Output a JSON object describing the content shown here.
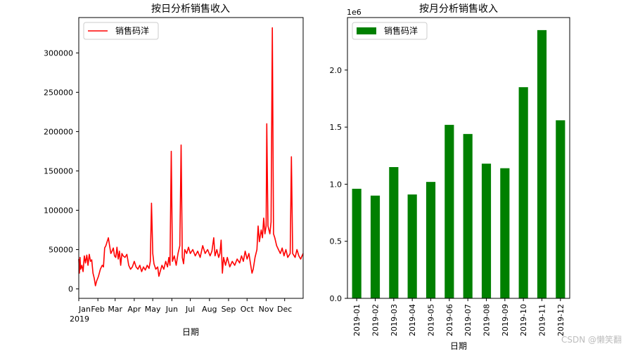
{
  "chart_data": [
    {
      "type": "line",
      "title": "按日分析销售收入",
      "xlabel": "日期",
      "ylabel": "",
      "x_tick_labels": [
        "Jan",
        "Feb",
        "Mar",
        "Apr",
        "May",
        "Jun",
        "Jul",
        "Aug",
        "Sep",
        "Oct",
        "Nov",
        "Dec"
      ],
      "x_year_label": "2019",
      "y_ticks": [
        0,
        50000,
        100000,
        150000,
        200000,
        250000,
        300000
      ],
      "y_tick_labels": [
        "0",
        "50000",
        "100000",
        "150000",
        "200000",
        "250000",
        "300000"
      ],
      "xlim": [
        "2019-01-01",
        "2019-12-31"
      ],
      "ylim": [
        -12000,
        345000
      ],
      "legend": {
        "position": "top-left",
        "entries": [
          "销售码洋"
        ]
      },
      "series": [
        {
          "name": "销售码洋",
          "color": "#ff0000",
          "points": [
            [
              "2019-01-01",
              38000
            ],
            [
              "2019-01-02",
              20000
            ],
            [
              "2019-01-03",
              40000
            ],
            [
              "2019-01-04",
              25000
            ],
            [
              "2019-01-06",
              30000
            ],
            [
              "2019-01-08",
              22000
            ],
            [
              "2019-01-10",
              42000
            ],
            [
              "2019-01-12",
              33000
            ],
            [
              "2019-01-14",
              43000
            ],
            [
              "2019-01-16",
              30000
            ],
            [
              "2019-01-18",
              44000
            ],
            [
              "2019-01-20",
              35000
            ],
            [
              "2019-01-22",
              37000
            ],
            [
              "2019-01-24",
              20000
            ],
            [
              "2019-01-26",
              14000
            ],
            [
              "2019-01-28",
              4000
            ],
            [
              "2019-01-30",
              10000
            ],
            [
              "2019-02-02",
              16000
            ],
            [
              "2019-02-05",
              25000
            ],
            [
              "2019-02-08",
              30000
            ],
            [
              "2019-02-10",
              28000
            ],
            [
              "2019-02-12",
              52000
            ],
            [
              "2019-02-14",
              55000
            ],
            [
              "2019-02-16",
              60000
            ],
            [
              "2019-02-18",
              65000
            ],
            [
              "2019-02-20",
              55000
            ],
            [
              "2019-02-22",
              45000
            ],
            [
              "2019-02-24",
              48000
            ],
            [
              "2019-02-26",
              52000
            ],
            [
              "2019-02-28",
              42000
            ],
            [
              "2019-03-02",
              40000
            ],
            [
              "2019-03-04",
              53000
            ],
            [
              "2019-03-06",
              38000
            ],
            [
              "2019-03-08",
              48000
            ],
            [
              "2019-03-10",
              30000
            ],
            [
              "2019-03-12",
              45000
            ],
            [
              "2019-03-14",
              42000
            ],
            [
              "2019-03-17",
              40000
            ],
            [
              "2019-03-20",
              44000
            ],
            [
              "2019-03-23",
              30000
            ],
            [
              "2019-03-26",
              25000
            ],
            [
              "2019-03-29",
              28000
            ],
            [
              "2019-04-01",
              35000
            ],
            [
              "2019-04-04",
              28000
            ],
            [
              "2019-04-07",
              25000
            ],
            [
              "2019-04-10",
              30000
            ],
            [
              "2019-04-13",
              22000
            ],
            [
              "2019-04-16",
              28000
            ],
            [
              "2019-04-19",
              24000
            ],
            [
              "2019-04-22",
              30000
            ],
            [
              "2019-04-25",
              26000
            ],
            [
              "2019-04-27",
              35000
            ],
            [
              "2019-04-29",
              109000
            ],
            [
              "2019-05-01",
              45000
            ],
            [
              "2019-05-03",
              32000
            ],
            [
              "2019-05-06",
              25000
            ],
            [
              "2019-05-09",
              28000
            ],
            [
              "2019-05-11",
              16000
            ],
            [
              "2019-05-13",
              22000
            ],
            [
              "2019-05-16",
              30000
            ],
            [
              "2019-05-19",
              25000
            ],
            [
              "2019-05-22",
              35000
            ],
            [
              "2019-05-25",
              28000
            ],
            [
              "2019-05-27",
              40000
            ],
            [
              "2019-05-29",
              30000
            ],
            [
              "2019-05-31",
              175000
            ],
            [
              "2019-06-02",
              35000
            ],
            [
              "2019-06-05",
              42000
            ],
            [
              "2019-06-08",
              30000
            ],
            [
              "2019-06-11",
              45000
            ],
            [
              "2019-06-14",
              55000
            ],
            [
              "2019-06-16",
              183000
            ],
            [
              "2019-06-18",
              40000
            ],
            [
              "2019-06-20",
              32000
            ],
            [
              "2019-06-22",
              50000
            ],
            [
              "2019-06-25",
              45000
            ],
            [
              "2019-06-28",
              53000
            ],
            [
              "2019-07-01",
              45000
            ],
            [
              "2019-07-05",
              50000
            ],
            [
              "2019-07-09",
              42000
            ],
            [
              "2019-07-13",
              48000
            ],
            [
              "2019-07-17",
              40000
            ],
            [
              "2019-07-21",
              55000
            ],
            [
              "2019-07-25",
              45000
            ],
            [
              "2019-07-29",
              50000
            ],
            [
              "2019-08-02",
              42000
            ],
            [
              "2019-08-05",
              48000
            ],
            [
              "2019-08-08",
              65000
            ],
            [
              "2019-08-10",
              42000
            ],
            [
              "2019-08-13",
              50000
            ],
            [
              "2019-08-16",
              40000
            ],
            [
              "2019-08-18",
              45000
            ],
            [
              "2019-08-20",
              62000
            ],
            [
              "2019-08-22",
              20000
            ],
            [
              "2019-08-24",
              40000
            ],
            [
              "2019-08-27",
              30000
            ],
            [
              "2019-08-30",
              40000
            ],
            [
              "2019-09-03",
              28000
            ],
            [
              "2019-09-07",
              35000
            ],
            [
              "2019-09-11",
              30000
            ],
            [
              "2019-09-15",
              38000
            ],
            [
              "2019-09-19",
              33000
            ],
            [
              "2019-09-22",
              42000
            ],
            [
              "2019-09-25",
              35000
            ],
            [
              "2019-09-28",
              48000
            ],
            [
              "2019-10-01",
              38000
            ],
            [
              "2019-10-04",
              45000
            ],
            [
              "2019-10-07",
              30000
            ],
            [
              "2019-10-09",
              20000
            ],
            [
              "2019-10-11",
              25000
            ],
            [
              "2019-10-14",
              40000
            ],
            [
              "2019-10-17",
              50000
            ],
            [
              "2019-10-19",
              80000
            ],
            [
              "2019-10-21",
              60000
            ],
            [
              "2019-10-24",
              75000
            ],
            [
              "2019-10-26",
              65000
            ],
            [
              "2019-10-28",
              90000
            ],
            [
              "2019-10-30",
              70000
            ],
            [
              "2019-11-01",
              80000
            ],
            [
              "2019-11-02",
              210000
            ],
            [
              "2019-11-04",
              80000
            ],
            [
              "2019-11-07",
              70000
            ],
            [
              "2019-11-09",
              85000
            ],
            [
              "2019-11-11",
              332000
            ],
            [
              "2019-11-13",
              70000
            ],
            [
              "2019-11-15",
              65000
            ],
            [
              "2019-11-18",
              55000
            ],
            [
              "2019-11-21",
              50000
            ],
            [
              "2019-11-24",
              45000
            ],
            [
              "2019-11-27",
              52000
            ],
            [
              "2019-11-30",
              42000
            ],
            [
              "2019-12-03",
              50000
            ],
            [
              "2019-12-06",
              40000
            ],
            [
              "2019-12-10",
              45000
            ],
            [
              "2019-12-12",
              168000
            ],
            [
              "2019-12-14",
              45000
            ],
            [
              "2019-12-18",
              40000
            ],
            [
              "2019-12-21",
              50000
            ],
            [
              "2019-12-24",
              42000
            ],
            [
              "2019-12-27",
              38000
            ],
            [
              "2019-12-31",
              45000
            ]
          ]
        }
      ]
    },
    {
      "type": "bar",
      "title": "按月分析销售收入",
      "xlabel": "日期",
      "ylabel": "",
      "y_offset_label": "1e6",
      "categories": [
        "2019-01",
        "2019-02",
        "2019-03",
        "2019-04",
        "2019-05",
        "2019-06",
        "2019-07",
        "2019-08",
        "2019-09",
        "2019-10",
        "2019-11",
        "2019-12"
      ],
      "y_ticks": [
        0.0,
        0.5,
        1.0,
        1.5,
        2.0
      ],
      "y_tick_labels": [
        "0.0",
        "0.5",
        "1.0",
        "1.5",
        "2.0"
      ],
      "ylim": [
        0,
        2.46
      ],
      "legend": {
        "position": "top-left",
        "entries": [
          "销售码洋"
        ]
      },
      "series": [
        {
          "name": "销售码洋",
          "color": "#008000",
          "values": [
            0.96,
            0.9,
            1.15,
            0.91,
            1.02,
            1.52,
            1.44,
            1.18,
            1.14,
            1.85,
            2.35,
            1.56
          ]
        }
      ]
    }
  ],
  "watermark": "CSDN @懒笑翻"
}
